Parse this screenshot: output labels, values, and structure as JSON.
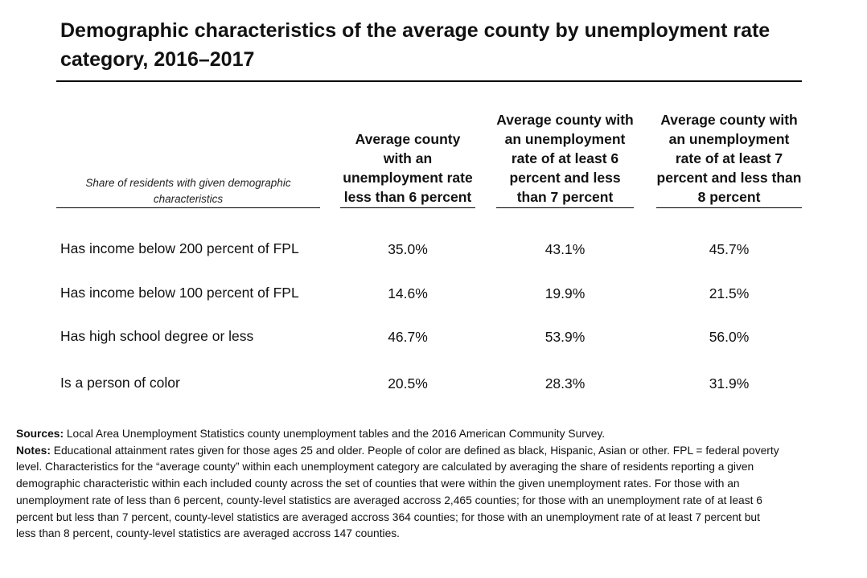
{
  "title": "Demographic characteristics of the average county by unemployment rate category, 2016–2017",
  "table": {
    "row_header": "Share of residents with given demographic characteristics",
    "columns": [
      "Average county with an unemployment rate less than 6 percent",
      "Average county with an unemployment rate of at least 6 percent and less than 7 percent",
      "Average county with an unemployment rate of at least 7 percent and less than 8 percent"
    ],
    "rows": [
      {
        "label": "Has income below 200 percent of FPL",
        "values": [
          "35.0%",
          "43.1%",
          "45.7%"
        ]
      },
      {
        "label": "Has income below 100 percent of FPL",
        "values": [
          "14.6%",
          "19.9%",
          "21.5%"
        ]
      },
      {
        "label": "Has high school degree or less",
        "values": [
          "46.7%",
          "53.9%",
          "56.0%"
        ]
      },
      {
        "label": "Is a person of color",
        "values": [
          "20.5%",
          "28.3%",
          "31.9%"
        ]
      }
    ]
  },
  "footer": {
    "sources_label": "Sources:",
    "sources_text": " Local Area Unemployment Statistics county unemployment tables and the 2016 American Community Survey.",
    "notes_label": "Notes:",
    "notes_text": " Educational attainment rates given for those ages 25 and older. People of color are defined as black, Hispanic, Asian or other. FPL = federal poverty level. Characteristics for the “average county” within each unemployment category are calculated by averaging the share of residents reporting a given demographic characteristic within each included county across the set of counties that were within the given unemployment rates. For those with an unemployment rate of less than 6 percent, county-level statistics are averaged accross 2,465 counties; for those with an unemployment rate of at least 6 percent but less than 7 percent, county-level statistics are averaged accross 364 counties; for those with an unemployment rate of at least 7 percent but less than 8 percent, county-level statistics are averaged accross 147 counties."
  }
}
